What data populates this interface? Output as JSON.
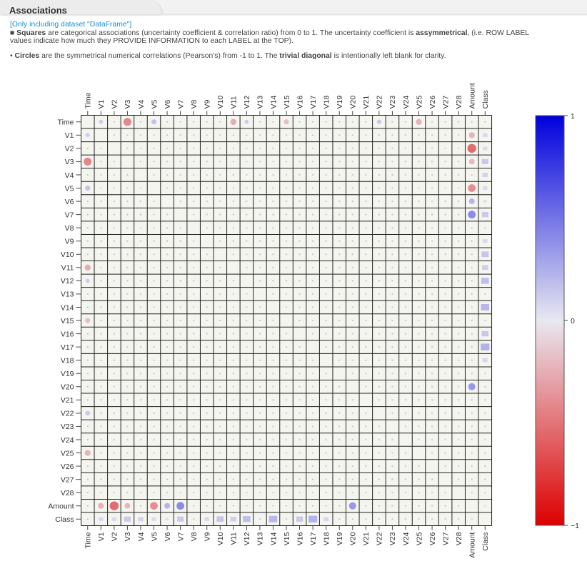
{
  "tab": {
    "title": "Associations"
  },
  "notes": {
    "dataset": "[Only including dataset \"DataFrame\"]",
    "squares_bullet": "■",
    "squares_bold": "Squares",
    "squares_text": " are categorical associations (uncertainty coefficient & correlation ratio) from 0 to 1. The uncertainty coefficient is ",
    "squares_bold2": "assymmetrical",
    "squares_text2": ", (i.e. ROW LABEL",
    "squares_line2": "values indicate how much they PROVIDE INFORMATION to each LABEL at the TOP).",
    "circles_bullet": "•",
    "circles_bold": "Circles",
    "circles_text": " are the symmetrical numerical correlations (Pearson's) from -1 to 1. The ",
    "circles_bold2": "trivial diagonal",
    "circles_text2": " is intentionally left blank for clarity."
  },
  "chart_data": {
    "type": "heatmap",
    "labels": [
      "Time",
      "V1",
      "V2",
      "V3",
      "V4",
      "V5",
      "V6",
      "V7",
      "V8",
      "V9",
      "V10",
      "V11",
      "V12",
      "V13",
      "V14",
      "V15",
      "V16",
      "V17",
      "V18",
      "V19",
      "V20",
      "V21",
      "V22",
      "V23",
      "V24",
      "V25",
      "V26",
      "V27",
      "V28",
      "Amount",
      "Class"
    ],
    "colorbar": {
      "max_label": "1",
      "mid_label": "0",
      "min_label": "−1",
      "max_color": "#0000dd",
      "mid_color": "#e8e8f0",
      "min_color": "#dd0000"
    },
    "colors": {
      "cell_bg": "#f5f5f0",
      "grid": "#222222"
    },
    "numeric_correlations": [
      {
        "a": "Time",
        "b": "V1",
        "r": 0.12
      },
      {
        "a": "Time",
        "b": "V3",
        "r": -0.42
      },
      {
        "a": "Time",
        "b": "V5",
        "r": 0.17
      },
      {
        "a": "Time",
        "b": "V11",
        "r": -0.25
      },
      {
        "a": "Time",
        "b": "V12",
        "r": 0.12
      },
      {
        "a": "Time",
        "b": "V15",
        "r": -0.18
      },
      {
        "a": "Time",
        "b": "V22",
        "r": 0.14
      },
      {
        "a": "Time",
        "b": "V25",
        "r": -0.23
      },
      {
        "a": "Amount",
        "b": "V1",
        "r": -0.23
      },
      {
        "a": "Amount",
        "b": "V2",
        "r": -0.53
      },
      {
        "a": "Amount",
        "b": "V3",
        "r": -0.21
      },
      {
        "a": "Amount",
        "b": "V5",
        "r": -0.39
      },
      {
        "a": "Amount",
        "b": "V6",
        "r": 0.22
      },
      {
        "a": "Amount",
        "b": "V7",
        "r": 0.4
      },
      {
        "a": "Amount",
        "b": "V20",
        "r": 0.34
      }
    ],
    "categorical_associations": [
      {
        "row": "Class",
        "col": "V1",
        "v": 0.1
      },
      {
        "row": "Class",
        "col": "V2",
        "v": 0.09
      },
      {
        "row": "Class",
        "col": "V3",
        "v": 0.19
      },
      {
        "row": "Class",
        "col": "V4",
        "v": 0.13
      },
      {
        "row": "Class",
        "col": "V5",
        "v": 0.09
      },
      {
        "row": "Class",
        "col": "V6",
        "v": 0.05
      },
      {
        "row": "Class",
        "col": "V7",
        "v": 0.19
      },
      {
        "row": "Class",
        "col": "V9",
        "v": 0.1
      },
      {
        "row": "Class",
        "col": "V10",
        "v": 0.22
      },
      {
        "row": "Class",
        "col": "V11",
        "v": 0.16
      },
      {
        "row": "Class",
        "col": "V12",
        "v": 0.26
      },
      {
        "row": "Class",
        "col": "V14",
        "v": 0.3
      },
      {
        "row": "Class",
        "col": "V16",
        "v": 0.2
      },
      {
        "row": "Class",
        "col": "V17",
        "v": 0.33
      },
      {
        "row": "Class",
        "col": "V18",
        "v": 0.11
      },
      {
        "row": "V1",
        "col": "Class",
        "v": 0.1
      },
      {
        "row": "V2",
        "col": "Class",
        "v": 0.09
      },
      {
        "row": "V3",
        "col": "Class",
        "v": 0.19
      },
      {
        "row": "V4",
        "col": "Class",
        "v": 0.13
      },
      {
        "row": "V5",
        "col": "Class",
        "v": 0.09
      },
      {
        "row": "V6",
        "col": "Class",
        "v": 0.05
      },
      {
        "row": "V7",
        "col": "Class",
        "v": 0.19
      },
      {
        "row": "V9",
        "col": "Class",
        "v": 0.1
      },
      {
        "row": "V10",
        "col": "Class",
        "v": 0.22
      },
      {
        "row": "V11",
        "col": "Class",
        "v": 0.16
      },
      {
        "row": "V12",
        "col": "Class",
        "v": 0.26
      },
      {
        "row": "V14",
        "col": "Class",
        "v": 0.3
      },
      {
        "row": "V16",
        "col": "Class",
        "v": 0.2
      },
      {
        "row": "V17",
        "col": "Class",
        "v": 0.33
      },
      {
        "row": "V18",
        "col": "Class",
        "v": 0.11
      },
      {
        "row": "Amount",
        "col": "Class",
        "v": 0.04
      },
      {
        "row": "Class",
        "col": "Amount",
        "v": 0.04
      }
    ]
  }
}
